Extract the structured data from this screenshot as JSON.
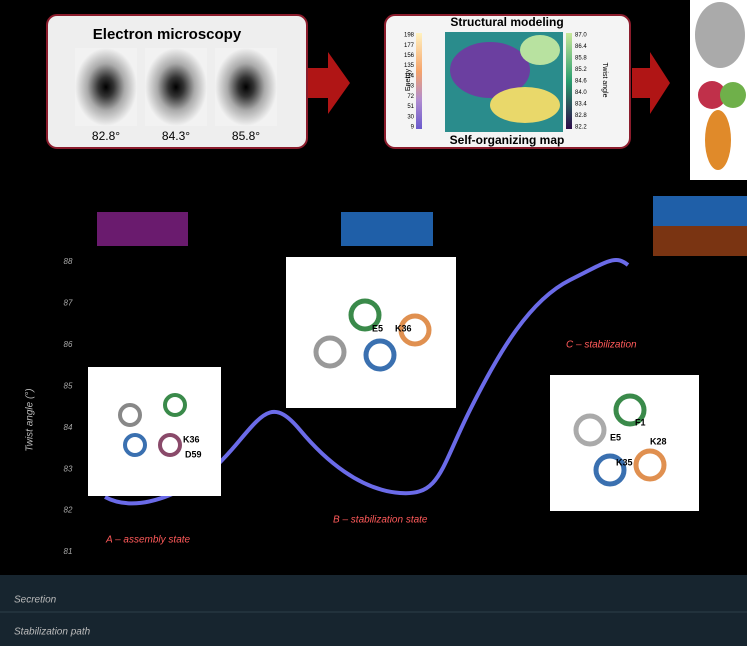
{
  "panels": {
    "electron_microscopy": {
      "title": "Electron microscopy",
      "angles": [
        "82.8°",
        "84.3°",
        "85.8°"
      ]
    },
    "modeling": {
      "title": "Structural modeling",
      "subtitle": "Self-organizing map",
      "energy_label": "Energy",
      "energy_ticks": [
        "198",
        "177",
        "156",
        "135",
        "114",
        "93",
        "72",
        "51",
        "30",
        "9"
      ],
      "twist_label": "Twist angle",
      "twist_ticks": [
        "87.0",
        "86.4",
        "85.8",
        "85.2",
        "84.6",
        "84.0",
        "83.4",
        "82.8",
        "82.2"
      ]
    }
  },
  "plot": {
    "y_axis_label": "Twist angle (°)",
    "y_ticks": [
      "88",
      "87",
      "86",
      "85",
      "84",
      "83",
      "82",
      "81"
    ],
    "states": [
      {
        "label": "A – assembly state",
        "residues": [
          "K36",
          "D59"
        ]
      },
      {
        "label": "B – stabilization state",
        "residues": [
          "E5",
          "K36"
        ]
      },
      {
        "label": "C – stabilization",
        "residues": [
          "F1",
          "E5",
          "K28",
          "K35"
        ]
      }
    ]
  },
  "footer": {
    "rows": [
      "Secretion",
      "Stabilization path"
    ]
  }
}
